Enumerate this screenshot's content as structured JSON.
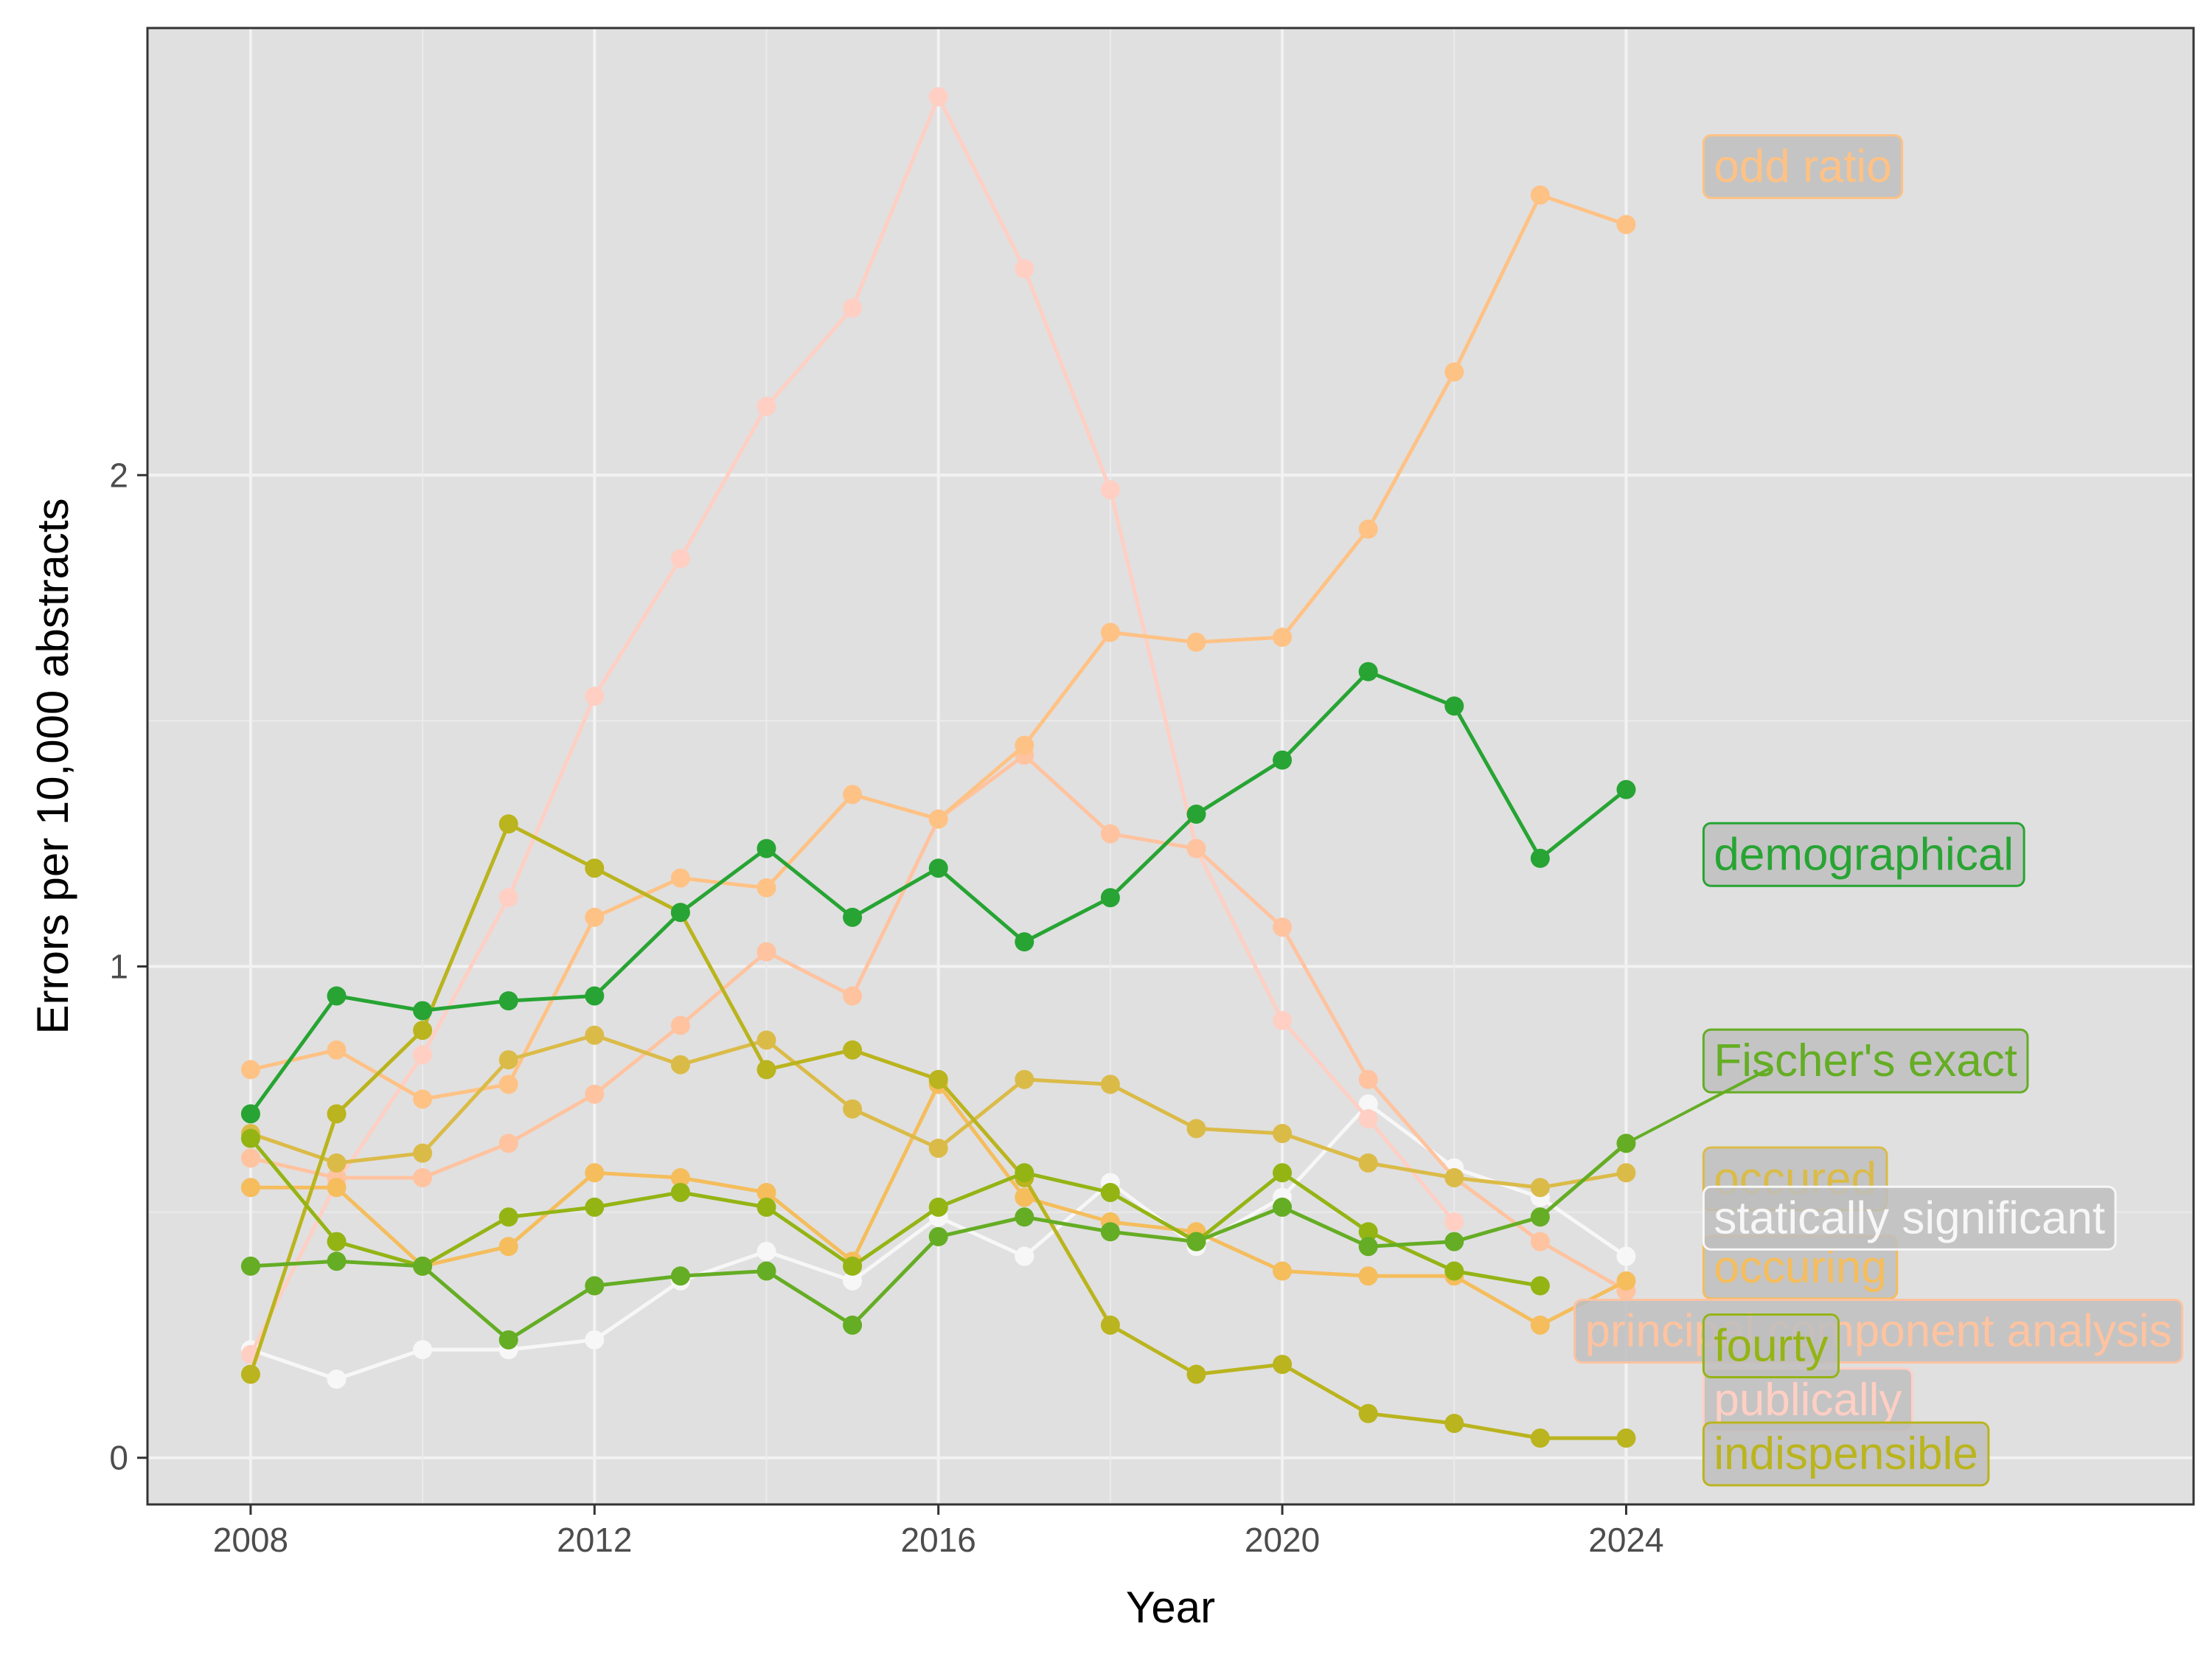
{
  "chart_data": {
    "type": "line",
    "title": "",
    "xlabel": "Year",
    "ylabel": "Errors per 10,000 abstracts",
    "xlim": [
      2006.8,
      2030.6
    ],
    "ylim": [
      -0.095,
      2.91
    ],
    "xticks": [
      2008,
      2012,
      2016,
      2020,
      2024
    ],
    "xtick_labels": [
      "2008",
      "2012",
      "2016",
      "2020",
      "2024"
    ],
    "yticks": [
      0,
      1,
      2
    ],
    "ytick_labels": [
      "0",
      "1",
      "2"
    ],
    "grid": true,
    "background": "#e0e0e0",
    "legend": "direct labels at right end of lines",
    "x": [
      2008,
      2009,
      2010,
      2011,
      2012,
      2013,
      2014,
      2015,
      2016,
      2017,
      2018,
      2019,
      2020,
      2021,
      2022,
      2023,
      2024
    ],
    "series": [
      {
        "name": "statically significant",
        "color": "#f7f7f7",
        "values": [
          0.22,
          0.16,
          0.22,
          0.22,
          0.24,
          0.36,
          0.42,
          0.36,
          0.49,
          0.41,
          0.56,
          0.43,
          0.53,
          0.72,
          0.59,
          0.53,
          0.41
        ]
      },
      {
        "name": "publically",
        "color": "#ffcfc4",
        "values": [
          0.21,
          0.56,
          0.82,
          1.14,
          1.55,
          1.83,
          2.14,
          2.34,
          2.77,
          2.42,
          1.97,
          1.24,
          0.89,
          0.69,
          0.48,
          null,
          null
        ]
      },
      {
        "name": "principal component analysis",
        "color": "#ffc3a0",
        "values": [
          0.61,
          0.57,
          0.57,
          0.64,
          0.74,
          0.88,
          1.03,
          0.94,
          1.3,
          1.43,
          1.27,
          1.24,
          1.08,
          0.77,
          0.57,
          0.44,
          0.34
        ]
      },
      {
        "name": "odd ratio",
        "color": "#ffc285",
        "values": [
          0.79,
          0.83,
          0.73,
          0.76,
          1.1,
          1.18,
          1.16,
          1.35,
          1.3,
          1.45,
          1.68,
          1.66,
          1.67,
          1.89,
          2.21,
          2.57,
          2.51
        ]
      },
      {
        "name": "occuring",
        "color": "#f5bd5c",
        "values": [
          0.55,
          0.55,
          0.39,
          0.43,
          0.58,
          0.57,
          0.54,
          0.4,
          0.76,
          0.53,
          0.48,
          0.46,
          0.38,
          0.37,
          0.37,
          0.27,
          0.36
        ]
      },
      {
        "name": "occured",
        "color": "#dbbb48",
        "values": [
          0.66,
          0.6,
          0.62,
          0.81,
          0.86,
          0.8,
          0.85,
          0.71,
          0.63,
          0.77,
          0.76,
          0.67,
          0.66,
          0.6,
          0.57,
          0.55,
          0.58
        ]
      },
      {
        "name": "indispensible",
        "color": "#bab41e",
        "values": [
          0.17,
          0.7,
          0.87,
          1.29,
          1.2,
          1.11,
          0.79,
          0.83,
          0.77,
          0.57,
          0.27,
          0.17,
          0.19,
          0.09,
          0.07,
          0.04,
          0.04
        ]
      },
      {
        "name": "fourty",
        "color": "#94b414",
        "values": [
          0.65,
          0.44,
          0.39,
          0.49,
          0.51,
          0.54,
          0.51,
          0.39,
          0.51,
          0.58,
          0.54,
          0.44,
          0.58,
          0.46,
          0.38,
          0.35,
          null
        ]
      },
      {
        "name": "Fischer's exact",
        "color": "#65ad24",
        "values": [
          0.39,
          0.4,
          0.39,
          0.24,
          0.35,
          0.37,
          0.38,
          0.27,
          0.45,
          0.49,
          0.46,
          0.44,
          0.51,
          0.43,
          0.44,
          0.49,
          0.64
        ]
      },
      {
        "name": "demographical",
        "color": "#27a433",
        "values": [
          0.7,
          0.94,
          0.91,
          0.93,
          0.94,
          1.11,
          1.24,
          1.1,
          1.2,
          1.05,
          1.14,
          1.31,
          1.42,
          1.6,
          1.53,
          1.22,
          1.36
        ]
      }
    ],
    "labels": [
      {
        "text": "odd ratio",
        "color": "#ffc285",
        "y": 2.63
      },
      {
        "text": "demographical",
        "color": "#27a433",
        "y": 1.23
      },
      {
        "text": "Fischer's exact",
        "color": "#65ad24",
        "y": 0.81
      },
      {
        "text": "occured",
        "color": "#dbbb48",
        "y": 0.57
      },
      {
        "text": "occuring",
        "color": "#f5bd5c",
        "y": 0.39
      },
      {
        "text": "statically significant",
        "color": "#f7f7f7",
        "y": 0.49
      },
      {
        "text": "publically",
        "color": "#ffcfc4",
        "y": 0.12
      },
      {
        "text": "principal component analysis",
        "color": "#ffc3a0",
        "y": 0.26
      },
      {
        "text": "fourty",
        "color": "#94b414",
        "y": 0.23
      },
      {
        "text": "indispensible",
        "color": "#bab41e",
        "y": 0.01
      }
    ]
  }
}
